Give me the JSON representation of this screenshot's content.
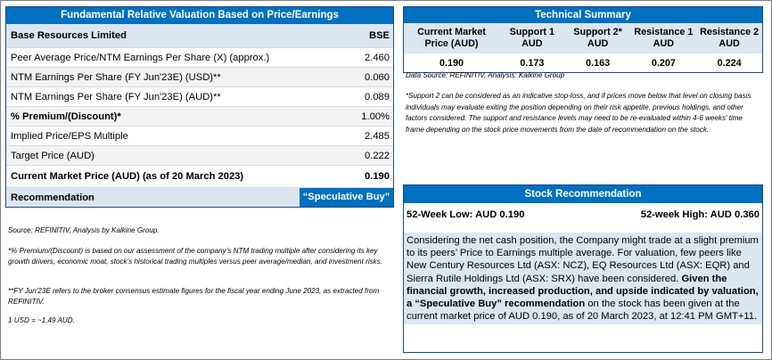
{
  "valuation": {
    "title": "Fundamental Relative Valuation Based on Price/Earnings",
    "company": "Base Resources Limited",
    "exchange": "BSE",
    "rows": [
      {
        "label": "Peer Average Price/NTM Earnings Per Share (X) (approx.)",
        "value": "2.460"
      },
      {
        "label": "NTM Earnings Per Share (FY Jun'23E) (USD)**",
        "value": "0.060"
      },
      {
        "label": "NTM Earnings Per Share (FY Jun'23E) (AUD)**",
        "value": "0.089"
      },
      {
        "label": "% Premium/(Discount)*",
        "value": "1.00%"
      },
      {
        "label": "Implied Price/EPS Multiple",
        "value": "2.485"
      },
      {
        "label": "Target Price (AUD)",
        "value": "0.222"
      }
    ],
    "cmp_label": "Current Market Price (AUD) (as of 20 March 2023)",
    "cmp_value": "0.190",
    "reco_label": "Recommendation",
    "reco_value": "“Speculative Buy”"
  },
  "notes": {
    "source": "Source: REFINITIV, Analysis by Kalkine Group.",
    "premium": "*% Premium/(Discount) is based on our assessment of the company’s NTM trading multiple after considering its key growth drivers, economic moat, stock’s historical trading multiples versus peer average/median, and investment risks.",
    "fy": "**FY Jun'23E refers to the broker consensus estimate figures for the fiscal year ending June 2023, as extracted from REFINITIV.",
    "fx": "1 USD = ~1.49 AUD."
  },
  "technical": {
    "title": "Technical Summary",
    "columns": [
      {
        "label": "Current Market Price (AUD)",
        "value": "0.190"
      },
      {
        "label": "Support 1 AUD",
        "value": "0.173"
      },
      {
        "label": "Support 2* AUD",
        "value": "0.163"
      },
      {
        "label": "Resistance 1 AUD",
        "value": "0.207"
      },
      {
        "label": "Resistance 2 AUD",
        "value": "0.224"
      }
    ],
    "source": "Data Source: REFINITIV, Analysis: Kalkine Group",
    "note": "*Support 2 can be considered as an indicative stop-loss, and if prices move below that level on closing basis individuals may evaluate exiting the position depending on their risk appetite, previous holdings, and other factors considered. The support and resistance levels may need to be re-evaluated within 4-6 weeks’ time frame depending on the stock price movements from the date of recommendation on the stock."
  },
  "stock": {
    "title": "Stock Recommendation",
    "low": "52-Week Low: AUD 0.190",
    "high": "52-week High: AUD 0.360",
    "body_plain": "Considering the net cash position, the Company might trade at a slight premium to its peers’ Price to Earnings multiple average. For valuation, few peers like New Century Resources Ltd (ASX: NCZ), EQ Resources Ltd (ASX: EQR) and Sierra Rutile Holdings Ltd (ASX: SRX) have been considered.",
    "body_bold": "Given the financial growth, increased production, and upside indicated by valuation,  a “Speculative Buy” recommendation",
    "body_tail": "on the stock has been given at the current market price of AUD 0.190, as of 20 March 2023, at 12:41 PM GMT+11."
  }
}
